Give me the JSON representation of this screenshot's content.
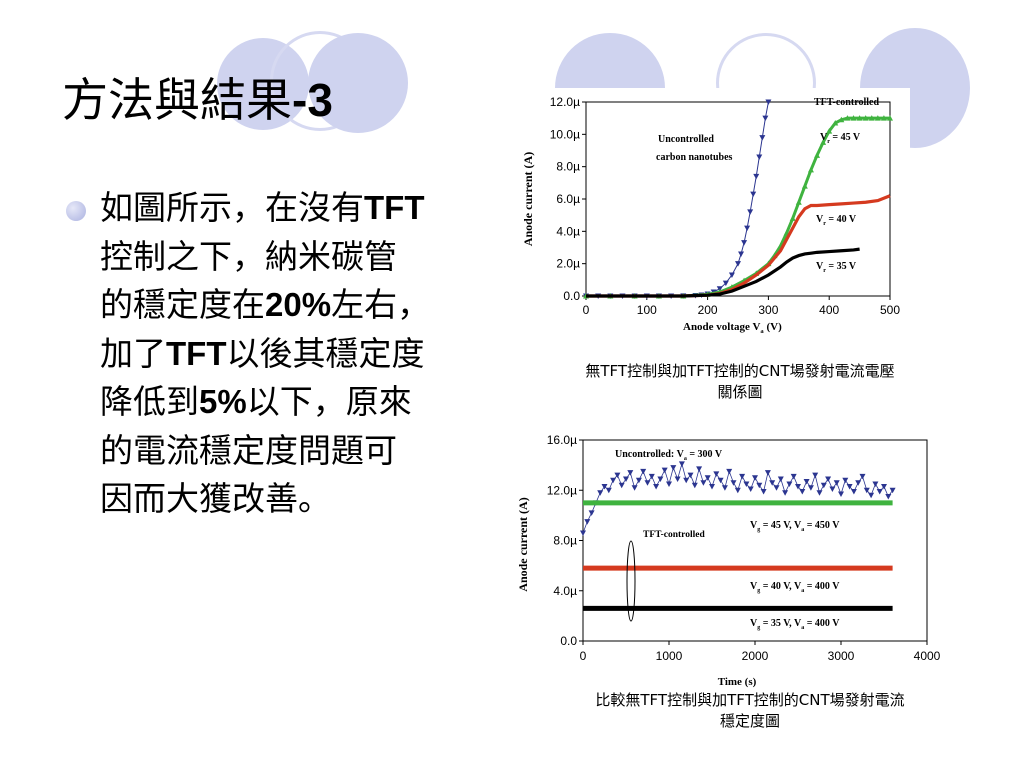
{
  "slide": {
    "title": "方法與結果",
    "title_suffix": "-3",
    "bullet_text": "如圖所示，在沒有TFT\n控制之下，納米碳管\n的穩定度在20%左右，\n加了TFT以後其穩定度\n降低到5%以下，原來\n的電流穩定度問題可\n因而大獲改善。",
    "caption1": "無TFT控制與加TFT控制的CNT場發射電流電壓\n關係圖",
    "caption2": "比較無TFT控制與加TFT控制的CNT場發射電流\n穩定度圖"
  },
  "chart_data": [
    {
      "type": "scatter",
      "ylabel": "Anode current (A)",
      "xlabel": "Anode voltage V",
      "xlabel_sub": "a",
      "xlabel_unit": "(V)",
      "xlim": [
        0,
        500
      ],
      "ylim": [
        0,
        12
      ],
      "x_ticks": [
        "0",
        "100",
        "200",
        "300",
        "400",
        "500"
      ],
      "y_ticks": [
        "0.0",
        "2.0µ",
        "4.0µ",
        "6.0µ",
        "8.0µ",
        "10.0µ",
        "12.0µ"
      ],
      "annotations": [
        "Uncontrolled",
        "carbon nanotubes",
        "TFT-controlled"
      ],
      "series": [
        {
          "name": "Uncontrolled carbon nanotubes",
          "color": "#2b3590",
          "marker": "triangle-down",
          "x": [
            0,
            20,
            40,
            60,
            80,
            100,
            120,
            140,
            160,
            180,
            190,
            200,
            210,
            220,
            230,
            240,
            250,
            255,
            260,
            265,
            270,
            275,
            280,
            285,
            290,
            295,
            300
          ],
          "y": [
            0,
            0,
            0,
            0,
            0,
            0,
            0,
            0,
            0.01,
            0.03,
            0.06,
            0.12,
            0.25,
            0.45,
            0.8,
            1.3,
            2.0,
            2.6,
            3.3,
            4.2,
            5.2,
            6.3,
            7.4,
            8.6,
            9.8,
            11.0,
            12.0
          ]
        },
        {
          "name": "V = 45 V",
          "label_main": "V",
          "label_sub": "r",
          "label_val": "= 45 V",
          "color": "#3fb33f",
          "marker": "triangle-up",
          "x": [
            0,
            40,
            80,
            120,
            160,
            200,
            220,
            240,
            260,
            280,
            300,
            310,
            320,
            330,
            340,
            350,
            360,
            370,
            380,
            390,
            400,
            410,
            420,
            430,
            440,
            450,
            460,
            470,
            480,
            490,
            500
          ],
          "y": [
            0,
            0,
            0,
            0,
            0,
            0.1,
            0.25,
            0.55,
            0.95,
            1.4,
            2.0,
            2.5,
            3.1,
            3.9,
            4.8,
            5.8,
            6.8,
            7.8,
            8.7,
            9.5,
            10.2,
            10.7,
            10.9,
            11.0,
            11.0,
            11.0,
            11.0,
            11.0,
            11.0,
            11.0,
            11.0
          ]
        },
        {
          "name": "V = 40 V",
          "label_main": "V",
          "label_sub": "r",
          "label_val": "= 40 V",
          "color": "#d53a1f",
          "marker": "line",
          "x": [
            0,
            40,
            80,
            120,
            160,
            200,
            220,
            240,
            260,
            280,
            300,
            320,
            330,
            340,
            350,
            360,
            370,
            380,
            400,
            420,
            440,
            460,
            480,
            500
          ],
          "y": [
            0,
            0,
            0,
            0,
            0,
            0.05,
            0.15,
            0.4,
            0.8,
            1.3,
            1.9,
            2.8,
            3.5,
            4.2,
            4.9,
            5.4,
            5.6,
            5.6,
            5.65,
            5.7,
            5.75,
            5.8,
            5.9,
            6.2
          ]
        },
        {
          "name": "V = 35 V",
          "label_main": "V",
          "label_sub": "r",
          "label_val": "= 35 V",
          "color": "#000000",
          "marker": "line",
          "x": [
            0,
            40,
            80,
            120,
            160,
            200,
            220,
            240,
            260,
            280,
            300,
            320,
            330,
            340,
            350,
            360,
            370,
            380,
            400,
            420,
            440,
            450
          ],
          "y": [
            0,
            0,
            0,
            0,
            0,
            0.05,
            0.12,
            0.3,
            0.6,
            0.9,
            1.3,
            1.8,
            2.1,
            2.35,
            2.5,
            2.6,
            2.65,
            2.7,
            2.75,
            2.8,
            2.85,
            2.9
          ]
        }
      ]
    },
    {
      "type": "scatter",
      "ylabel": "Anode current (A)",
      "xlabel": "Time (s)",
      "xlim": [
        0,
        4000
      ],
      "ylim": [
        0,
        16
      ],
      "x_ticks": [
        "0",
        "1000",
        "2000",
        "3000",
        "4000"
      ],
      "y_ticks": [
        "0.0",
        "4.0µ",
        "8.0µ",
        "12.0µ",
        "16.0µ"
      ],
      "annotations": [
        "TFT-controlled"
      ],
      "series": [
        {
          "name": "Uncontrolled",
          "label_main": "Uncontrolled: V",
          "label_sub": "a",
          "label_val": "= 300 V",
          "color": "#2b3590",
          "marker": "triangle-down",
          "x": [
            0,
            50,
            100,
            150,
            200,
            250,
            300,
            350,
            400,
            450,
            500,
            550,
            600,
            650,
            700,
            750,
            800,
            850,
            900,
            950,
            1000,
            1050,
            1100,
            1150,
            1200,
            1250,
            1300,
            1350,
            1400,
            1450,
            1500,
            1550,
            1600,
            1650,
            1700,
            1750,
            1800,
            1850,
            1900,
            1950,
            2000,
            2050,
            2100,
            2150,
            2200,
            2250,
            2300,
            2350,
            2400,
            2450,
            2500,
            2550,
            2600,
            2650,
            2700,
            2750,
            2800,
            2850,
            2900,
            2950,
            3000,
            3050,
            3100,
            3150,
            3200,
            3250,
            3300,
            3350,
            3400,
            3450,
            3500,
            3550,
            3600
          ],
          "y": [
            8.6,
            9.5,
            10.2,
            11.0,
            11.8,
            12.3,
            12.0,
            12.8,
            13.2,
            12.4,
            12.9,
            13.4,
            12.2,
            12.8,
            13.5,
            12.6,
            13.1,
            12.3,
            12.9,
            13.6,
            12.5,
            13.8,
            12.9,
            14.1,
            12.8,
            13.2,
            12.4,
            13.7,
            12.6,
            13.0,
            12.3,
            13.3,
            12.8,
            12.2,
            13.5,
            12.6,
            12.0,
            13.1,
            12.5,
            12.1,
            13.0,
            12.4,
            11.9,
            13.4,
            12.6,
            12.2,
            12.9,
            11.8,
            12.5,
            13.1,
            12.3,
            11.9,
            12.7,
            12.2,
            13.2,
            11.8,
            12.4,
            12.9,
            12.1,
            12.6,
            11.7,
            12.8,
            12.3,
            11.9,
            12.6,
            13.1,
            12.0,
            11.6,
            12.5,
            11.9,
            12.3,
            11.5,
            12.0
          ]
        },
        {
          "name": "V = 45 V, V = 450 V",
          "label_main": "V",
          "label_sub": "g",
          "label_val": "= 45 V, V",
          "label_sub2": "a",
          "label_val2": "= 450 V",
          "color": "#3fb33f",
          "marker": "band",
          "x": [
            0,
            3600
          ],
          "y": [
            11.0,
            11.0
          ]
        },
        {
          "name": "V = 40 V, V = 400 V",
          "label_main": "V",
          "label_sub": "g",
          "label_val": "= 40 V, V",
          "label_sub2": "a",
          "label_val2": "= 400 V",
          "color": "#d53a1f",
          "marker": "band",
          "x": [
            0,
            3600
          ],
          "y": [
            5.8,
            5.8
          ]
        },
        {
          "name": "V = 35 V, V = 400 V",
          "label_main": "V",
          "label_sub": "g",
          "label_val": "= 35 V, V",
          "label_sub2": "a",
          "label_val2": "= 400 V",
          "color": "#000000",
          "marker": "band",
          "x": [
            0,
            3600
          ],
          "y": [
            2.6,
            2.6
          ]
        }
      ]
    }
  ]
}
